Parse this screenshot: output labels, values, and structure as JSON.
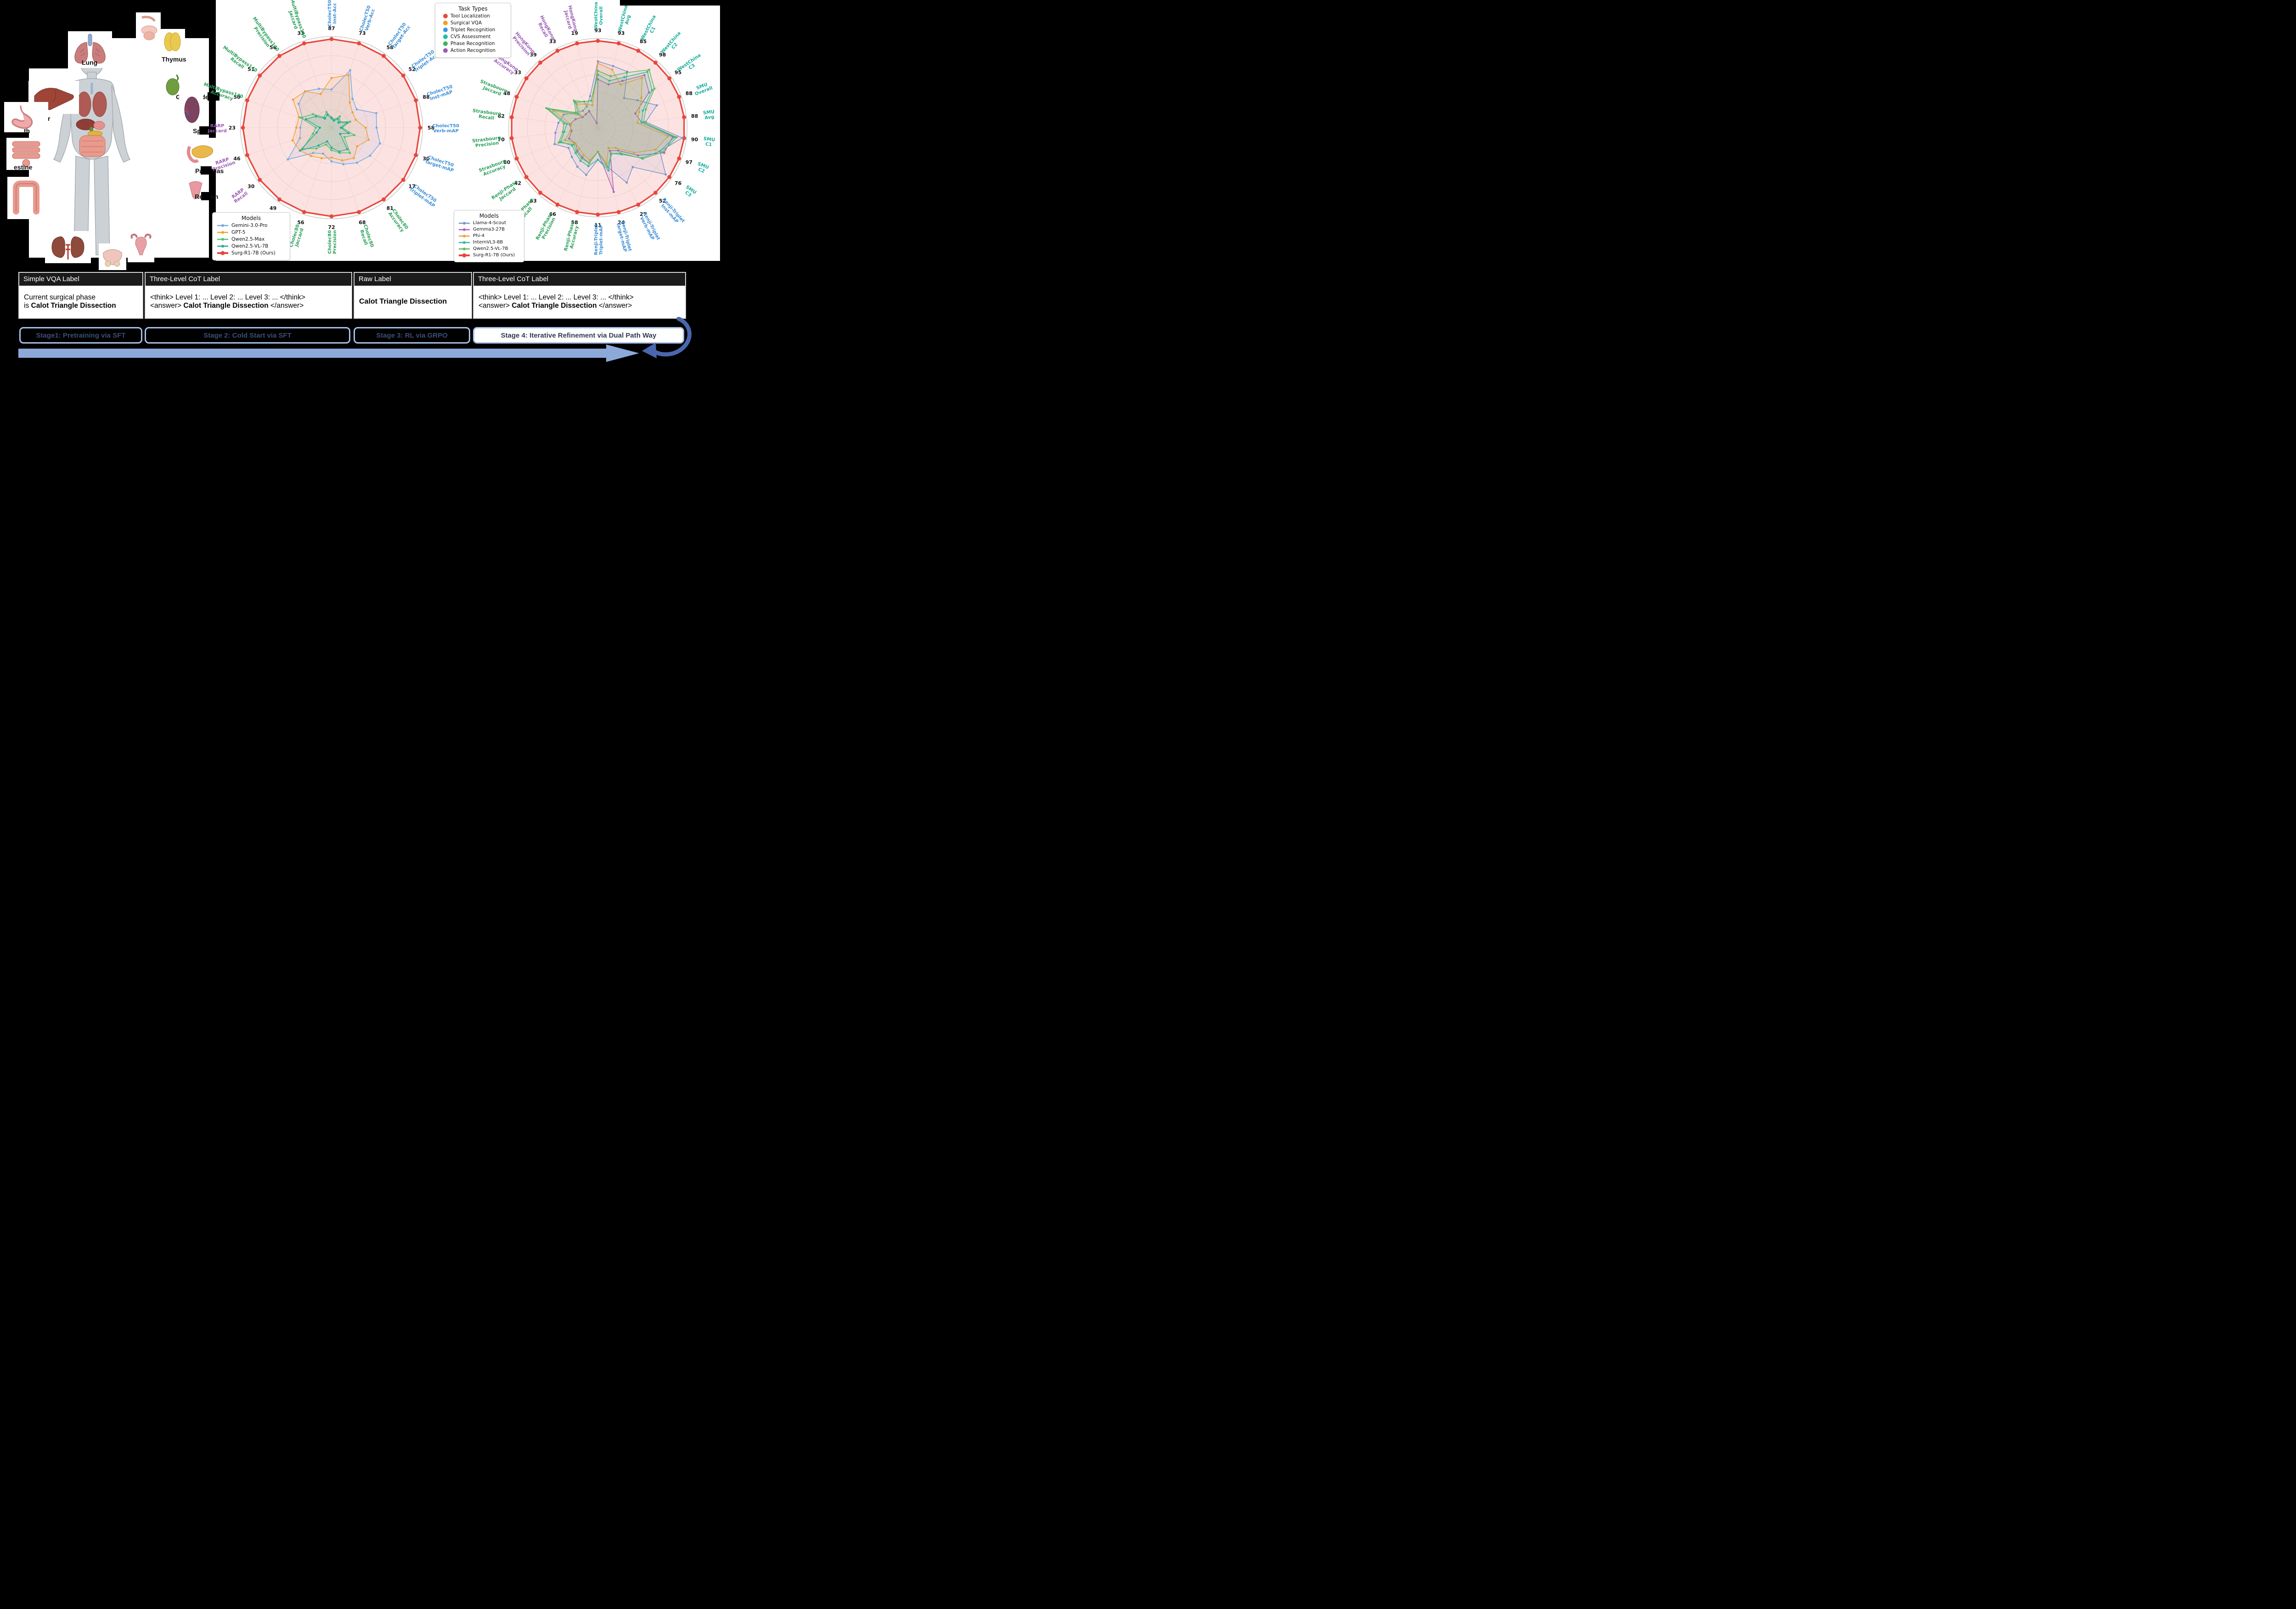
{
  "task_legend": {
    "title": "Task Types",
    "items": [
      {
        "label": "Tool Localization",
        "color": "#e5493d"
      },
      {
        "label": "Surgical VQA",
        "color": "#f59e1f"
      },
      {
        "label": "Triplet Recognition",
        "color": "#3d97e0"
      },
      {
        "label": "CVS Assessment",
        "color": "#1fbfa5"
      },
      {
        "label": "Phase Recognition",
        "color": "#3cb45c"
      },
      {
        "label": "Action Recognition",
        "color": "#9b59b6"
      }
    ]
  },
  "anatomy": {
    "labels": {
      "lung": "Lung",
      "thymus": "Thymus",
      "liver": "Liver",
      "gallbladder": "Gallbladder",
      "stomach": "th",
      "spleen": "Spleen",
      "intestine": "estine",
      "pancreas": "Pancreas",
      "rectum": "Rectum"
    }
  },
  "chart_data": [
    {
      "type": "radar",
      "legend_title": "Models",
      "note": "Axis numbers are Surg-R1-7B (Ours) scores; other model values estimated from plot",
      "axes": [
        {
          "group": "CholecT50",
          "metric": "Inst-Acc",
          "value": 87,
          "color": "#3d8fd6"
        },
        {
          "group": "CholecT50",
          "metric": "Verb-Acc",
          "value": 73,
          "color": "#3d8fd6"
        },
        {
          "group": "CholecT50",
          "metric": "Target-Acc",
          "value": 58,
          "color": "#3d8fd6"
        },
        {
          "group": "CholecT50",
          "metric": "Triplet-Acc",
          "value": 52,
          "color": "#3d8fd6"
        },
        {
          "group": "CholecT50",
          "metric": "Inst-mAP",
          "value": 88,
          "color": "#3d8fd6"
        },
        {
          "group": "CholecT50",
          "metric": "Verb-mAP",
          "value": 58,
          "color": "#3d8fd6"
        },
        {
          "group": "CholecT50",
          "metric": "Target-mAP",
          "value": 30,
          "color": "#3d8fd6"
        },
        {
          "group": "CholecT50",
          "metric": "Triplet-mAP",
          "value": 17,
          "color": "#3d8fd6"
        },
        {
          "group": "Cholec80",
          "metric": "Accuracy",
          "value": 81,
          "color": "#2ba05a"
        },
        {
          "group": "Cholec80",
          "metric": "Recall",
          "value": 68,
          "color": "#2ba05a"
        },
        {
          "group": "Cholec80",
          "metric": "Precision",
          "value": 72,
          "color": "#2ba05a"
        },
        {
          "group": "Cholec80",
          "metric": "Jaccard",
          "value": 56,
          "color": "#2ba05a"
        },
        {
          "group": "RARP",
          "metric": "Accuracy",
          "value": 49,
          "color": "#9b59b6"
        },
        {
          "group": "RARP",
          "metric": "Recall",
          "value": 30,
          "color": "#9b59b6"
        },
        {
          "group": "RARP",
          "metric": "Precision",
          "value": 46,
          "color": "#9b59b6"
        },
        {
          "group": "RARP",
          "metric": "Jaccard",
          "value": 23,
          "color": "#9b59b6"
        },
        {
          "group": "MultiBypass140",
          "metric": "Accuracy",
          "value": 50,
          "color": "#2ba05a"
        },
        {
          "group": "MultiBypass140",
          "metric": "Recall",
          "value": 51,
          "color": "#2ba05a"
        },
        {
          "group": "MultiBypass140",
          "metric": "Precision",
          "value": 56,
          "color": "#2ba05a"
        },
        {
          "group": "MultiBypass140",
          "metric": "Jaccard",
          "value": 33,
          "color": "#2ba05a"
        }
      ],
      "series": [
        {
          "name": "Gemini-3.0-Pro",
          "color": "#74aadd",
          "estimated": true,
          "values": [
            37,
            49,
            23,
            18,
            46,
            29,
            17,
            9,
            39,
            29,
            27,
            17,
            17,
            18,
            17,
            8,
            17,
            23,
            28,
            15
          ]
        },
        {
          "name": "GPT-5",
          "color": "#f0a032",
          "estimated": true,
          "values": [
            48,
            45,
            20,
            15,
            25,
            22,
            13,
            6,
            34,
            26,
            24,
            20,
            19,
            13,
            21,
            9,
            19,
            27,
            28,
            13
          ]
        },
        {
          "name": "Qwen2.5-Max",
          "color": "#4dc46f",
          "estimated": true,
          "values": [
            10,
            7,
            9,
            6,
            19,
            7,
            8,
            3,
            28,
            20,
            18,
            11,
            14,
            12,
            10,
            4,
            18,
            13,
            8,
            6
          ]
        },
        {
          "name": "Qwen2.5-VL-7B",
          "color": "#2aa79b",
          "estimated": true,
          "values": [
            9,
            6,
            7,
            5,
            16,
            6,
            6,
            2,
            24,
            19,
            16,
            9,
            12,
            13,
            8,
            3,
            15,
            11,
            7,
            5
          ]
        },
        {
          "name": "Surg-R1-7B (Ours)",
          "color": "#e8463c",
          "ours": true,
          "values": [
            87,
            73,
            58,
            52,
            88,
            58,
            30,
            17,
            81,
            68,
            72,
            56,
            49,
            30,
            46,
            23,
            50,
            51,
            56,
            33
          ]
        }
      ]
    },
    {
      "type": "radar",
      "legend_title": "Models",
      "note": "Axis numbers are Surg-R1-7B (Ours) scores; other model values estimated from plot",
      "axes": [
        {
          "group": "WestChina",
          "metric": "Overall",
          "value": 93,
          "color": "#16ad9c"
        },
        {
          "group": "WestChina",
          "metric": "Avg",
          "value": 93,
          "color": "#16ad9c"
        },
        {
          "group": "WestChina",
          "metric": "C1",
          "value": 85,
          "color": "#16ad9c"
        },
        {
          "group": "WestChina",
          "metric": "C2",
          "value": 98,
          "color": "#16ad9c"
        },
        {
          "group": "WestChina",
          "metric": "C3",
          "value": 95,
          "color": "#16ad9c"
        },
        {
          "group": "SMU",
          "metric": "Overall",
          "value": 88,
          "color": "#16ad9c"
        },
        {
          "group": "SMU",
          "metric": "Avg",
          "value": 88,
          "color": "#16ad9c"
        },
        {
          "group": "SMU",
          "metric": "C1",
          "value": 90,
          "color": "#16ad9c"
        },
        {
          "group": "SMU",
          "metric": "C2",
          "value": 97,
          "color": "#16ad9c"
        },
        {
          "group": "SMU",
          "metric": "C3",
          "value": 76,
          "color": "#16ad9c"
        },
        {
          "group": "Renji-Triplet",
          "metric": "Inst-mAP",
          "value": 52,
          "color": "#3d8fd6"
        },
        {
          "group": "Renji-Triplet",
          "metric": "Verb-mAP",
          "value": 27,
          "color": "#3d8fd6"
        },
        {
          "group": "Renji-Triplet",
          "metric": "Target-mAP",
          "value": 24,
          "color": "#3d8fd6"
        },
        {
          "group": "Renji-Triplet",
          "metric": "Triplet-mAP",
          "value": 11,
          "color": "#3d8fd6"
        },
        {
          "group": "Renji-Phase",
          "metric": "Accuracy",
          "value": 58,
          "color": "#2ba05a"
        },
        {
          "group": "Renji-Phase",
          "metric": "Precision",
          "value": 66,
          "color": "#2ba05a"
        },
        {
          "group": "Renji-Phase",
          "metric": "Recall",
          "value": 63,
          "color": "#2ba05a"
        },
        {
          "group": "Renji-Phase",
          "metric": "Jaccard",
          "value": 42,
          "color": "#2ba05a"
        },
        {
          "group": "Strasbourg",
          "metric": "Accuracy",
          "value": 80,
          "color": "#2ba05a"
        },
        {
          "group": "Strasbourg",
          "metric": "Precision",
          "value": 70,
          "color": "#2ba05a"
        },
        {
          "group": "Strasbourg",
          "metric": "Recall",
          "value": 62,
          "color": "#2ba05a"
        },
        {
          "group": "Strasbourg",
          "metric": "Jaccard",
          "value": 48,
          "color": "#2ba05a"
        },
        {
          "group": "HongKong",
          "metric": "Accuracy",
          "value": 33,
          "color": "#9b59b6"
        },
        {
          "group": "HongKong",
          "metric": "Precision",
          "value": 39,
          "color": "#9b59b6"
        },
        {
          "group": "HongKong",
          "metric": "Recall",
          "value": 33,
          "color": "#9b59b6"
        },
        {
          "group": "HongKong",
          "metric": "Jaccard",
          "value": 19,
          "color": "#9b59b6"
        }
      ],
      "series": [
        {
          "name": "Llama-4-Scout",
          "color": "#7b94cc",
          "estimated": true,
          "values": [
            70,
            67,
            61,
            44,
            52,
            63,
            48,
            87,
            73,
            71,
            31,
            19,
            11,
            4,
            32,
            33,
            28,
            17,
            42,
            34,
            28,
            20,
            10,
            10,
            9,
            7
          ]
        },
        {
          "name": "Gemma3-27B",
          "color": "#ab62b5",
          "estimated": true,
          "values": [
            51,
            47,
            51,
            78,
            67,
            40,
            44,
            77,
            78,
            42,
            18,
            8,
            18,
            3,
            24,
            25,
            22,
            13,
            28,
            21,
            20,
            13,
            7,
            8,
            7,
            1
          ]
        },
        {
          "name": "Phi-4",
          "color": "#f0a032",
          "estimated": true,
          "values": [
            68,
            63,
            47,
            74,
            57,
            44,
            40,
            72,
            68,
            38,
            16,
            7,
            10,
            3,
            22,
            23,
            20,
            13,
            32,
            22,
            19,
            26,
            8,
            14,
            10,
            5
          ]
        },
        {
          "name": "InternVL3-8B",
          "color": "#35b5a0",
          "estimated": true,
          "values": [
            56,
            51,
            55,
            83,
            71,
            48,
            44,
            79,
            73,
            46,
            21,
            9,
            12,
            4,
            26,
            28,
            24,
            15,
            36,
            27,
            22,
            29,
            9,
            15,
            11,
            6
          ]
        },
        {
          "name": "Qwen2.5-VL-7B",
          "color": "#5cb85c",
          "estimated": true,
          "values": [
            60,
            56,
            60,
            86,
            74,
            51,
            46,
            81,
            76,
            47,
            20,
            9,
            11,
            3,
            24,
            26,
            23,
            14,
            38,
            28,
            24,
            30,
            10,
            16,
            11,
            6
          ]
        },
        {
          "name": "Surg-R1-7B (Ours)",
          "color": "#e8463c",
          "ours": true,
          "values": [
            93,
            93,
            85,
            98,
            95,
            88,
            88,
            90,
            97,
            76,
            52,
            27,
            24,
            11,
            58,
            66,
            63,
            42,
            80,
            70,
            62,
            48,
            33,
            39,
            33,
            19
          ]
        }
      ]
    }
  ],
  "bottom": {
    "boxes": [
      {
        "header": "Simple VQA Label",
        "line1": "Current surgical phase",
        "line2_prefix": "is ",
        "line2_bold": "Calot Triangle Dissection"
      },
      {
        "header": "Three-Level CoT Label",
        "line1": "<think> Level 1: ... Level 2: ... Level 3: ... </think>",
        "line2_prefix": "<answer> ",
        "line2_bold": "Calot Triangle Dissection",
        "line2_suffix": " </answer>"
      },
      {
        "header": "Raw Label",
        "body_bold": "Calot Triangle Dissection"
      },
      {
        "header": "Three-Level CoT Label",
        "line1": "<think> Level 1: ... Level 2: ... Level 3: ... </think>",
        "line2_prefix": "<answer> ",
        "line2_bold": "Calot Triangle Dissection",
        "line2_suffix": " </answer>"
      }
    ],
    "stages": [
      {
        "label": "Stage1: Pretraining via SFT"
      },
      {
        "label": "Stage 2: Cold Start via SFT"
      },
      {
        "label": "Stage 3: RL via GRPO"
      },
      {
        "label": "Stage 4: Iterative Refinement via Dual Path Way",
        "highlight": true
      }
    ],
    "arrow_color": "#8ca9d9",
    "loop_color": "#4a67ad"
  }
}
